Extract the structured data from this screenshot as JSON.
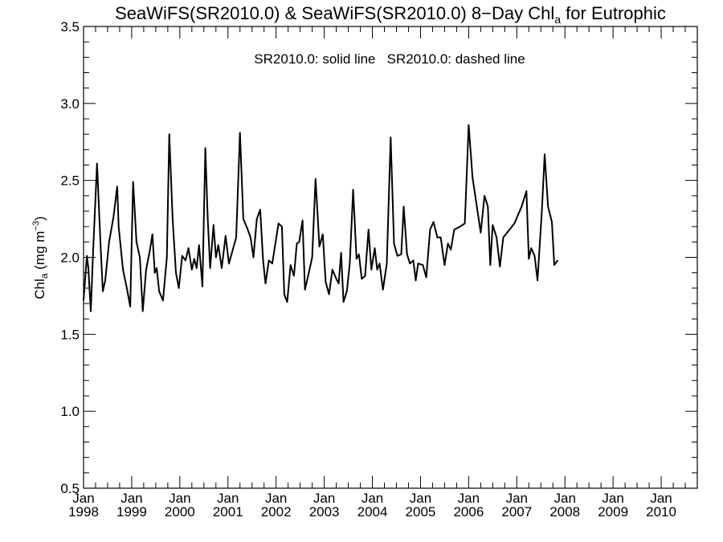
{
  "chart_data": {
    "type": "line",
    "title": {
      "prefix": "SeaWiFS(SR2010.0) & SeaWiFS(SR2010.0) 8−Day Chl",
      "sub": "a",
      "suffix": " for Eutrophic"
    },
    "subtitle": "SR2010.0: solid line   SR2010.0: dashed line",
    "ylabel": {
      "prefix": "Chl",
      "sub": "a",
      "mid": " (mg m",
      "sup": "−3",
      "suffix": ")"
    },
    "ylim": [
      0.5,
      3.5
    ],
    "xlim": [
      1998.0,
      2010.75
    ],
    "y_ticks": [
      {
        "value": 0.5,
        "label": "0.5"
      },
      {
        "value": 1.0,
        "label": "1.0"
      },
      {
        "value": 1.5,
        "label": "1.5"
      },
      {
        "value": 2.0,
        "label": "2.0"
      },
      {
        "value": 2.5,
        "label": "2.5"
      },
      {
        "value": 3.0,
        "label": "3.0"
      },
      {
        "value": 3.5,
        "label": "3.5"
      }
    ],
    "x_ticks": [
      {
        "value": 1998,
        "month": "Jan",
        "year": "1998"
      },
      {
        "value": 1999,
        "month": "Jan",
        "year": "1999"
      },
      {
        "value": 2000,
        "month": "Jan",
        "year": "2000"
      },
      {
        "value": 2001,
        "month": "Jan",
        "year": "2001"
      },
      {
        "value": 2002,
        "month": "Jan",
        "year": "2002"
      },
      {
        "value": 2003,
        "month": "Jan",
        "year": "2003"
      },
      {
        "value": 2004,
        "month": "Jan",
        "year": "2004"
      },
      {
        "value": 2005,
        "month": "Jan",
        "year": "2005"
      },
      {
        "value": 2006,
        "month": "Jan",
        "year": "2006"
      },
      {
        "value": 2007,
        "month": "Jan",
        "year": "2007"
      },
      {
        "value": 2008,
        "month": "Jan",
        "year": "2008"
      },
      {
        "value": 2009,
        "month": "Jan",
        "year": "2009"
      },
      {
        "value": 2010,
        "month": "Jan",
        "year": "2010"
      }
    ],
    "series": [
      {
        "style": "solid",
        "color": "#000000",
        "points": [
          [
            1998.0,
            1.72
          ],
          [
            1998.07,
            2.01
          ],
          [
            1998.1,
            1.93
          ],
          [
            1998.15,
            1.65
          ],
          [
            1998.2,
            2.05
          ],
          [
            1998.28,
            2.61
          ],
          [
            1998.35,
            2.1
          ],
          [
            1998.4,
            1.78
          ],
          [
            1998.45,
            1.85
          ],
          [
            1998.53,
            2.1
          ],
          [
            1998.62,
            2.26
          ],
          [
            1998.7,
            2.46
          ],
          [
            1998.73,
            2.2
          ],
          [
            1998.82,
            1.92
          ],
          [
            1998.9,
            1.8
          ],
          [
            1998.97,
            1.68
          ],
          [
            1999.03,
            2.49
          ],
          [
            1999.1,
            2.1
          ],
          [
            1999.17,
            2.0
          ],
          [
            1999.23,
            1.65
          ],
          [
            1999.3,
            1.92
          ],
          [
            1999.38,
            2.05
          ],
          [
            1999.43,
            2.15
          ],
          [
            1999.48,
            1.9
          ],
          [
            1999.52,
            1.93
          ],
          [
            1999.57,
            1.78
          ],
          [
            1999.65,
            1.72
          ],
          [
            1999.73,
            2.0
          ],
          [
            1999.78,
            2.8
          ],
          [
            1999.85,
            2.25
          ],
          [
            1999.92,
            1.9
          ],
          [
            1999.98,
            1.8
          ],
          [
            2000.05,
            2.01
          ],
          [
            2000.12,
            1.98
          ],
          [
            2000.18,
            2.06
          ],
          [
            2000.25,
            1.92
          ],
          [
            2000.3,
            1.99
          ],
          [
            2000.35,
            1.93
          ],
          [
            2000.4,
            2.08
          ],
          [
            2000.47,
            1.81
          ],
          [
            2000.53,
            2.71
          ],
          [
            2000.58,
            2.25
          ],
          [
            2000.63,
            1.93
          ],
          [
            2000.7,
            2.21
          ],
          [
            2000.75,
            2.0
          ],
          [
            2000.8,
            2.08
          ],
          [
            2000.87,
            1.93
          ],
          [
            2000.95,
            2.14
          ],
          [
            2001.02,
            1.96
          ],
          [
            2001.1,
            2.05
          ],
          [
            2001.17,
            2.13
          ],
          [
            2001.25,
            2.81
          ],
          [
            2001.32,
            2.25
          ],
          [
            2001.4,
            2.19
          ],
          [
            2001.47,
            2.13
          ],
          [
            2001.53,
            2.0
          ],
          [
            2001.6,
            2.25
          ],
          [
            2001.67,
            2.31
          ],
          [
            2001.73,
            1.98
          ],
          [
            2001.78,
            1.83
          ],
          [
            2001.85,
            1.98
          ],
          [
            2001.92,
            1.96
          ],
          [
            2001.98,
            2.08
          ],
          [
            2002.05,
            2.22
          ],
          [
            2002.12,
            2.2
          ],
          [
            2002.17,
            1.76
          ],
          [
            2002.23,
            1.71
          ],
          [
            2002.3,
            1.95
          ],
          [
            2002.37,
            1.88
          ],
          [
            2002.43,
            2.09
          ],
          [
            2002.48,
            2.1
          ],
          [
            2002.55,
            2.24
          ],
          [
            2002.6,
            1.79
          ],
          [
            2002.68,
            1.9
          ],
          [
            2002.75,
            2.0
          ],
          [
            2002.82,
            2.51
          ],
          [
            2002.9,
            2.07
          ],
          [
            2002.97,
            2.15
          ],
          [
            2003.03,
            1.84
          ],
          [
            2003.1,
            1.76
          ],
          [
            2003.17,
            1.92
          ],
          [
            2003.25,
            1.86
          ],
          [
            2003.3,
            1.83
          ],
          [
            2003.35,
            2.03
          ],
          [
            2003.4,
            1.71
          ],
          [
            2003.47,
            1.78
          ],
          [
            2003.53,
            1.96
          ],
          [
            2003.6,
            2.44
          ],
          [
            2003.67,
            1.99
          ],
          [
            2003.72,
            2.02
          ],
          [
            2003.78,
            1.86
          ],
          [
            2003.85,
            1.88
          ],
          [
            2003.92,
            2.18
          ],
          [
            2003.98,
            1.92
          ],
          [
            2004.05,
            2.06
          ],
          [
            2004.1,
            1.92
          ],
          [
            2004.15,
            1.96
          ],
          [
            2004.22,
            1.79
          ],
          [
            2004.3,
            1.96
          ],
          [
            2004.38,
            2.78
          ],
          [
            2004.45,
            2.09
          ],
          [
            2004.52,
            2.01
          ],
          [
            2004.6,
            2.02
          ],
          [
            2004.65,
            2.33
          ],
          [
            2004.72,
            2.02
          ],
          [
            2004.78,
            1.96
          ],
          [
            2004.85,
            1.98
          ],
          [
            2004.9,
            1.85
          ],
          [
            2004.95,
            1.96
          ],
          [
            2005.05,
            1.95
          ],
          [
            2005.12,
            1.87
          ],
          [
            2005.2,
            2.18
          ],
          [
            2005.27,
            2.23
          ],
          [
            2005.35,
            2.13
          ],
          [
            2005.42,
            2.13
          ],
          [
            2005.5,
            1.95
          ],
          [
            2005.57,
            2.09
          ],
          [
            2005.63,
            2.05
          ],
          [
            2005.7,
            2.18
          ],
          [
            2005.82,
            2.2
          ],
          [
            2005.92,
            2.22
          ],
          [
            2006.0,
            2.86
          ],
          [
            2006.08,
            2.52
          ],
          [
            2006.25,
            2.16
          ],
          [
            2006.33,
            2.4
          ],
          [
            2006.4,
            2.33
          ],
          [
            2006.45,
            1.95
          ],
          [
            2006.5,
            2.21
          ],
          [
            2006.58,
            2.13
          ],
          [
            2006.65,
            1.94
          ],
          [
            2006.72,
            2.13
          ],
          [
            2006.85,
            2.18
          ],
          [
            2006.95,
            2.22
          ],
          [
            2007.1,
            2.33
          ],
          [
            2007.2,
            2.43
          ],
          [
            2007.25,
            1.99
          ],
          [
            2007.3,
            2.06
          ],
          [
            2007.37,
            2.01
          ],
          [
            2007.43,
            1.85
          ],
          [
            2007.52,
            2.3
          ],
          [
            2007.58,
            2.67
          ],
          [
            2007.65,
            2.33
          ],
          [
            2007.73,
            2.23
          ],
          [
            2007.78,
            1.95
          ],
          [
            2007.85,
            1.98
          ]
        ]
      }
    ]
  }
}
